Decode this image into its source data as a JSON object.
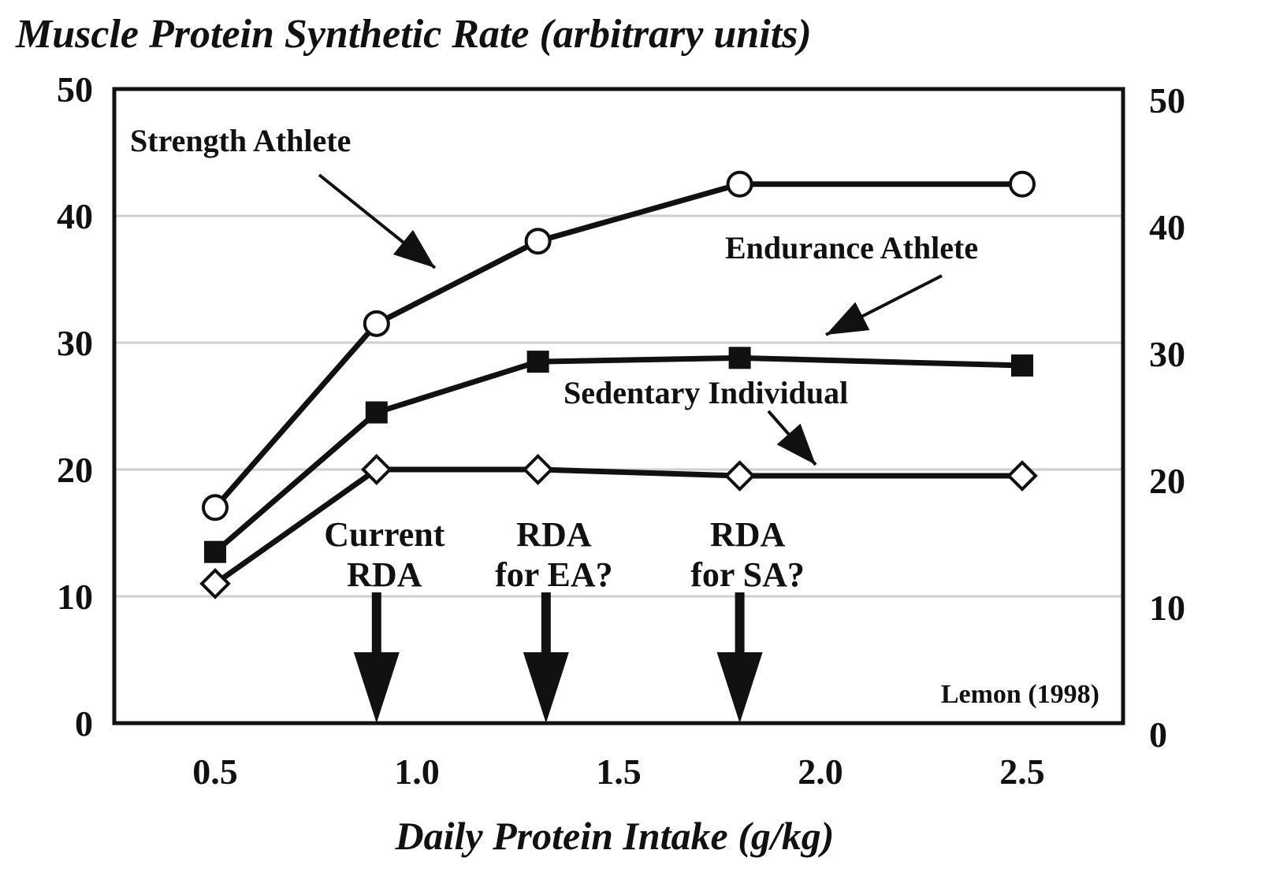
{
  "chart_data": {
    "type": "line",
    "title": "Muscle Protein Synthetic Rate (arbitrary units)",
    "xlabel": "Daily Protein Intake (g/kg)",
    "ylabel": "",
    "xlim": [
      0.25,
      2.75
    ],
    "ylim": [
      0,
      50
    ],
    "x_ticks": [
      "0.5",
      "1.0",
      "1.5",
      "2.0",
      "2.5"
    ],
    "y_ticks": [
      "0",
      "10",
      "20",
      "30",
      "40",
      "50"
    ],
    "grid": true,
    "series": [
      {
        "name": "Strength Athlete",
        "marker": "open-circle",
        "x": [
          0.5,
          0.9,
          1.3,
          1.8,
          2.5
        ],
        "y": [
          17,
          31.5,
          38,
          42.5,
          42.5
        ]
      },
      {
        "name": "Endurance Athlete",
        "marker": "filled-square",
        "x": [
          0.5,
          0.9,
          1.3,
          1.8,
          2.5
        ],
        "y": [
          13.5,
          24.5,
          28.5,
          28.8,
          28.2
        ]
      },
      {
        "name": "Sedentary Individual",
        "marker": "open-diamond",
        "x": [
          0.5,
          0.9,
          1.3,
          1.8,
          2.5
        ],
        "y": [
          11,
          20,
          20,
          19.5,
          19.5
        ]
      }
    ],
    "annotations": [
      {
        "lines": [
          "Current",
          "RDA"
        ],
        "x": 0.9
      },
      {
        "lines": [
          "RDA",
          "for EA?"
        ],
        "x": 1.32
      },
      {
        "lines": [
          "RDA",
          "for SA?"
        ],
        "x": 1.8
      }
    ],
    "source": "Lemon (1998)"
  }
}
